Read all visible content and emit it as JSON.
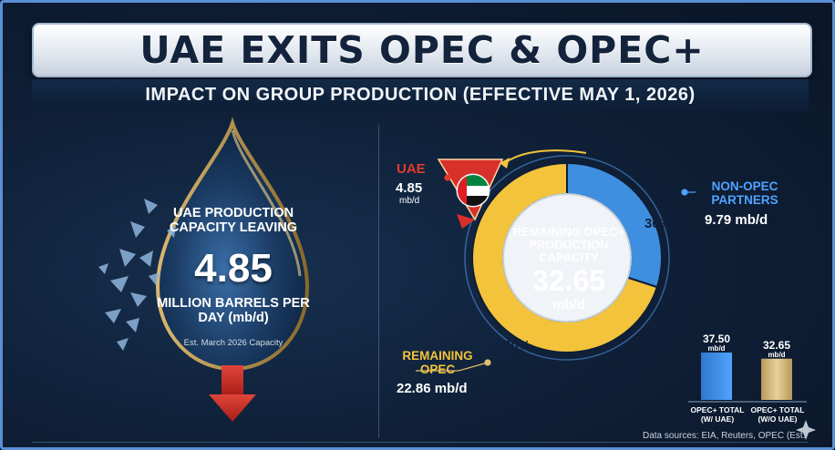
{
  "header": {
    "title": "UAE EXITS OPEC & OPEC+",
    "subtitle": "IMPACT ON GROUP PRODUCTION (EFFECTIVE MAY 1, 2026)"
  },
  "drop": {
    "label": "UAE PRODUCTION CAPACITY LEAVING",
    "value": "4.85",
    "unit": "MILLION BARRELS PER DAY (mb/d)",
    "note": "Est. March 2026 Capacity"
  },
  "donut": {
    "center_label": "REMAINING OPEC+ PRODUCTION CAPACITY",
    "center_value": "32.65",
    "center_unit": "mb/d",
    "uae": {
      "name": "UAE",
      "value": "4.85",
      "unit": "mb/d"
    },
    "non_opec": {
      "name": "NON-OPEC PARTNERS",
      "value": "9.79 mb/d",
      "percent_label": "30%",
      "share": 0.3
    },
    "remaining_opec": {
      "name": "REMAINING OPEC",
      "value": "22.86 mb/d",
      "percent_label": "70%",
      "share": 0.7
    }
  },
  "bars": [
    {
      "value_label": "37.50",
      "unit": "mb/d",
      "label": "OPEC+ TOTAL (W/ UAE)",
      "value": 37.5
    },
    {
      "value_label": "32.65",
      "unit": "mb/d",
      "label": "OPEC+ TOTAL (W/O UAE)",
      "value": 32.65
    }
  ],
  "footer": {
    "sources": "Data sources: EIA, Reuters, OPEC (Est."
  },
  "colors": {
    "opec": "#f3c33c",
    "non_opec": "#3e8fe0",
    "uae": "#d8302a",
    "accent": "#4fa3ff"
  },
  "icons": {
    "flag": "uae-flag-icon",
    "arrow": "down-arrow-icon",
    "sparkle": "sparkle-icon"
  }
}
